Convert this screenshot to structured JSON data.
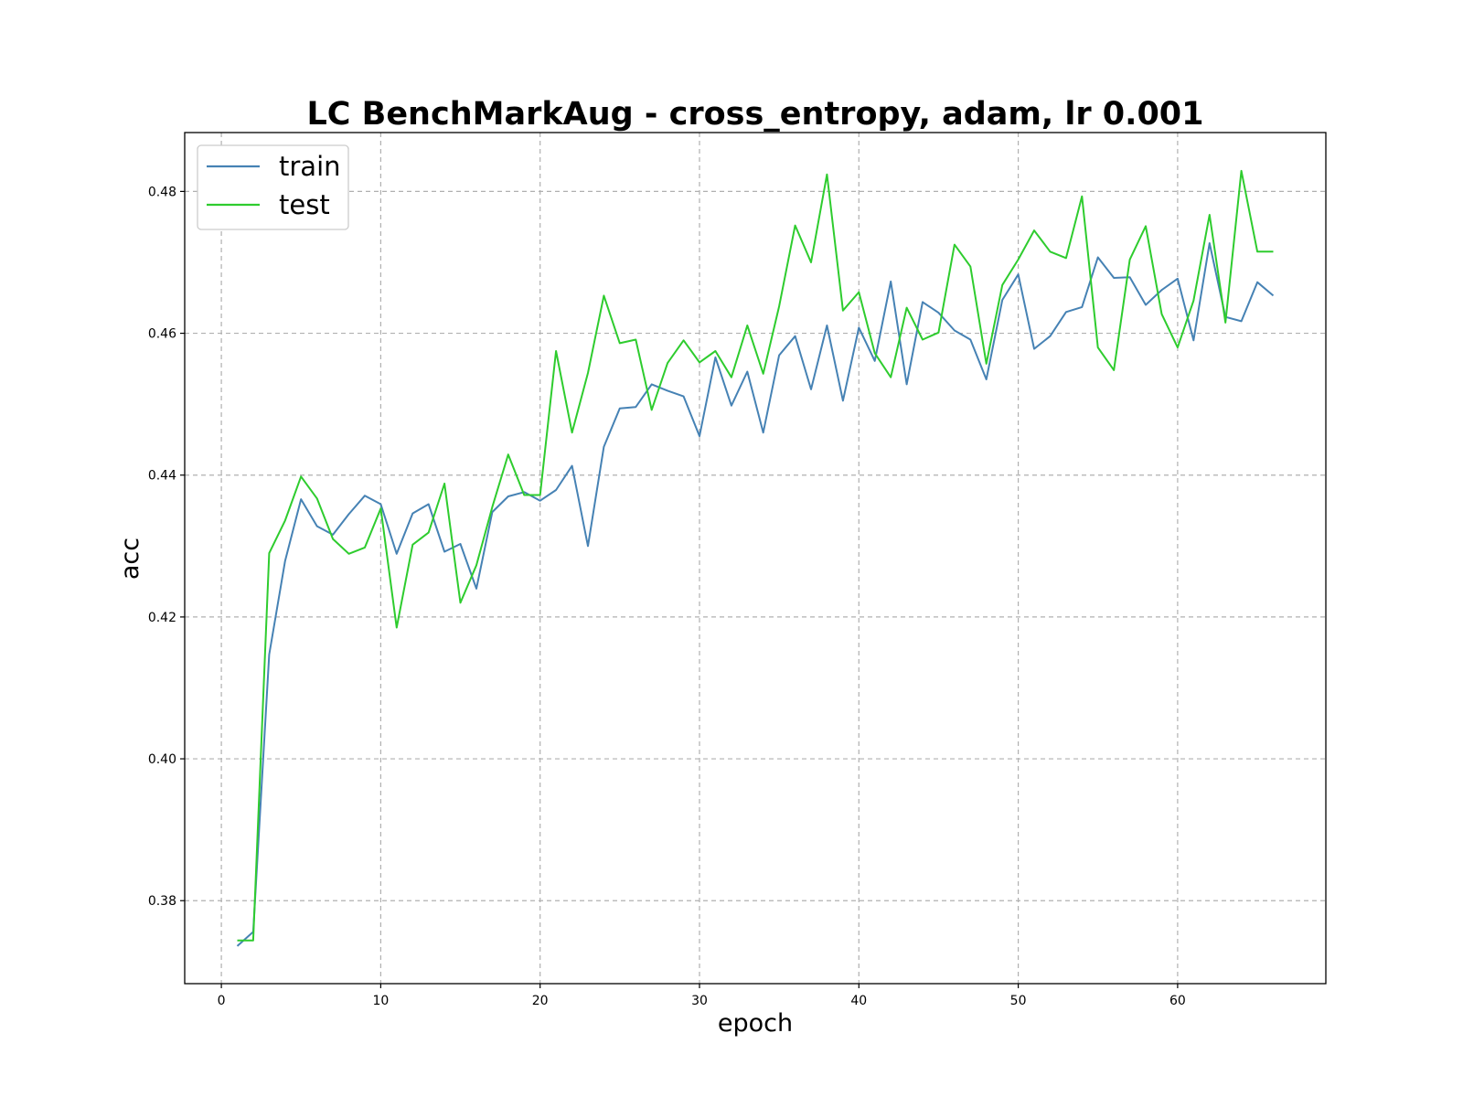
{
  "chart_data": {
    "type": "line",
    "title": "LC BenchMarkAug - cross_entropy, adam, lr 0.001",
    "xlabel": "epoch",
    "ylabel": "acc",
    "xlim": [
      -2.3,
      69.3
    ],
    "ylim": [
      0.3683,
      0.4883
    ],
    "xticks": [
      0,
      10,
      20,
      30,
      40,
      50,
      60
    ],
    "yticks": [
      0.38,
      0.4,
      0.42,
      0.44,
      0.46,
      0.48
    ],
    "xtick_labels": [
      "0",
      "10",
      "20",
      "30",
      "40",
      "50",
      "60"
    ],
    "ytick_labels": [
      "0.38",
      "0.40",
      "0.42",
      "0.44",
      "0.46",
      "0.48"
    ],
    "grid": true,
    "legend_position": "top-left",
    "series": [
      {
        "name": "train",
        "color": "#4682b4",
        "x": [
          1,
          2,
          3,
          4,
          5,
          6,
          7,
          8,
          9,
          10,
          11,
          12,
          13,
          14,
          15,
          16,
          17,
          18,
          19,
          20,
          21,
          22,
          23,
          24,
          25,
          26,
          27,
          28,
          29,
          30,
          31,
          32,
          33,
          34,
          35,
          36,
          37,
          38,
          39,
          40,
          41,
          42,
          43,
          44,
          45,
          46,
          47,
          48,
          49,
          50,
          51,
          52,
          53,
          54,
          55,
          56,
          57,
          58,
          59,
          60,
          61,
          62,
          63,
          64,
          65,
          66
        ],
        "values": [
          0.3736,
          0.3756,
          0.4147,
          0.4279,
          0.4366,
          0.4328,
          0.4316,
          0.4345,
          0.4371,
          0.4359,
          0.4289,
          0.4346,
          0.4359,
          0.4292,
          0.4303,
          0.424,
          0.4348,
          0.437,
          0.4376,
          0.4364,
          0.4379,
          0.4413,
          0.43,
          0.444,
          0.4494,
          0.4496,
          0.4528,
          0.4519,
          0.4511,
          0.4455,
          0.4566,
          0.4498,
          0.4546,
          0.446,
          0.4569,
          0.4596,
          0.4521,
          0.4611,
          0.4505,
          0.4608,
          0.4561,
          0.4673,
          0.4528,
          0.4644,
          0.4629,
          0.4604,
          0.4591,
          0.4535,
          0.4647,
          0.4683,
          0.4578,
          0.4596,
          0.463,
          0.4637,
          0.4707,
          0.4678,
          0.4679,
          0.464,
          0.4661,
          0.4677,
          0.459,
          0.4727,
          0.4623,
          0.4617,
          0.4672,
          0.4653
        ]
      },
      {
        "name": "test",
        "color": "#2ecc2e",
        "x": [
          1,
          2,
          3,
          4,
          5,
          6,
          7,
          8,
          9,
          10,
          11,
          12,
          13,
          14,
          15,
          16,
          17,
          18,
          19,
          20,
          21,
          22,
          23,
          24,
          25,
          26,
          27,
          28,
          29,
          30,
          31,
          32,
          33,
          34,
          35,
          36,
          37,
          38,
          39,
          40,
          41,
          42,
          43,
          44,
          45,
          46,
          47,
          48,
          49,
          50,
          51,
          52,
          53,
          54,
          55,
          56,
          57,
          58,
          59,
          60,
          61,
          62,
          63,
          64,
          65,
          66
        ],
        "values": [
          0.3744,
          0.3744,
          0.429,
          0.4336,
          0.4398,
          0.4367,
          0.431,
          0.4289,
          0.4298,
          0.4353,
          0.4185,
          0.4302,
          0.4319,
          0.4388,
          0.422,
          0.4273,
          0.4355,
          0.4429,
          0.4372,
          0.4372,
          0.4575,
          0.446,
          0.4544,
          0.4653,
          0.4586,
          0.4591,
          0.4492,
          0.4558,
          0.459,
          0.4559,
          0.4575,
          0.4538,
          0.4611,
          0.4543,
          0.4638,
          0.4752,
          0.47,
          0.4824,
          0.4632,
          0.4658,
          0.4572,
          0.4538,
          0.4636,
          0.4591,
          0.4601,
          0.4725,
          0.4694,
          0.4557,
          0.4668,
          0.4704,
          0.4745,
          0.4715,
          0.4706,
          0.4793,
          0.458,
          0.4548,
          0.4704,
          0.4751,
          0.4627,
          0.458,
          0.4646,
          0.4767,
          0.4615,
          0.4829,
          0.4715,
          0.4715
        ]
      }
    ]
  }
}
